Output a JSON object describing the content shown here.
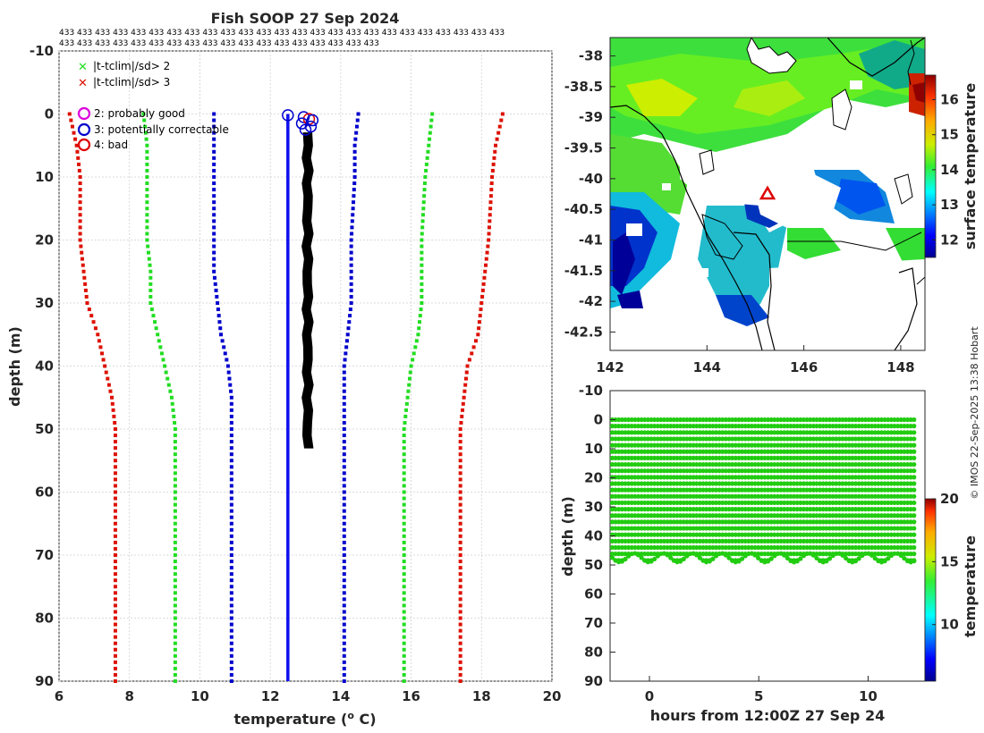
{
  "title": "Fish SOOP 27 Sep 2024",
  "station_counts": {
    "row1": "433 433 433 433 433 433 433 433 433 433 433 433 433 433 433 433 433 433 433 433 433 433 433 433 433",
    "row2": "433 433 433 433 433 433 433 433 433 433 433 433 433 433 433 433 433 433"
  },
  "legend": {
    "flag2": "|t-tclim|/sd> 2",
    "flag3": "|t-tclim|/sd> 3",
    "qc2": "2: probably good",
    "qc3": "3: potentially correctable",
    "qc4": "4: bad"
  },
  "copyright": "© IMOS 22-Sep-2025 13:38 Hobart",
  "colors": {
    "sd3": "#dd1100",
    "sd2": "#22dd22",
    "sd1": "#0000cc",
    "mean": "#1010ee",
    "profile": "#000000",
    "qc2": "#dd00dd",
    "qc3": "#0000cc",
    "qc4": "#dd0000",
    "points": "#22cc11"
  },
  "chart_data": [
    {
      "type": "line",
      "name": "profile",
      "xlabel": "temperature (o C)",
      "ylabel": "depth (m)",
      "xlim": [
        6,
        20
      ],
      "ylim": [
        -10,
        90
      ],
      "xticks": [
        "6",
        "8",
        "10",
        "12",
        "14",
        "16",
        "18",
        "20"
      ],
      "yticks": [
        "-10",
        "0",
        "10",
        "20",
        "30",
        "40",
        "50",
        "60",
        "70",
        "80",
        "90"
      ],
      "depth": [
        0,
        5,
        10,
        20,
        25,
        30,
        35,
        40,
        45,
        50,
        60,
        70,
        80,
        90
      ],
      "series": [
        {
          "name": "clim-3sd",
          "color": "#dd1100",
          "values": [
            6.3,
            6.5,
            6.6,
            6.6,
            6.7,
            6.8,
            7.1,
            7.3,
            7.5,
            7.6,
            7.6,
            7.6,
            7.6,
            7.6
          ]
        },
        {
          "name": "clim-2sd",
          "color": "#22dd22",
          "values": [
            8.4,
            8.5,
            8.5,
            8.5,
            8.6,
            8.6,
            8.8,
            9.0,
            9.2,
            9.3,
            9.3,
            9.3,
            9.3,
            9.3
          ]
        },
        {
          "name": "clim-1sd",
          "color": "#0000cc",
          "values": [
            10.4,
            10.4,
            10.4,
            10.4,
            10.4,
            10.5,
            10.6,
            10.8,
            10.9,
            10.9,
            10.9,
            10.9,
            10.9,
            10.9
          ]
        },
        {
          "name": "clim-mean",
          "color": "#1010ee",
          "values": [
            12.5,
            12.5,
            12.5,
            12.5,
            12.5,
            12.5,
            12.5,
            12.5,
            12.5,
            12.5,
            12.5,
            12.5,
            12.5,
            12.5
          ]
        },
        {
          "name": "clim+1sd",
          "color": "#0000cc",
          "values": [
            14.5,
            14.4,
            14.4,
            14.3,
            14.3,
            14.3,
            14.2,
            14.1,
            14.1,
            14.1,
            14.1,
            14.1,
            14.1,
            14.1
          ]
        },
        {
          "name": "clim+2sd",
          "color": "#22dd22",
          "values": [
            16.6,
            16.5,
            16.4,
            16.3,
            16.3,
            16.3,
            16.2,
            16.0,
            15.9,
            15.8,
            15.8,
            15.8,
            15.8,
            15.8
          ]
        },
        {
          "name": "clim+3sd",
          "color": "#dd1100",
          "values": [
            18.6,
            18.4,
            18.3,
            18.2,
            18.1,
            18.0,
            17.9,
            17.6,
            17.5,
            17.4,
            17.4,
            17.4,
            17.4,
            17.4
          ]
        }
      ],
      "observed": {
        "depth_min": 0,
        "depth_max": 50,
        "temp_min": 12.9,
        "temp_max": 13.2
      },
      "qc_markers": [
        {
          "temp": 12.5,
          "depth": 0.2,
          "flag": 3
        },
        {
          "temp": 12.95,
          "depth": 0.5,
          "flag": 3
        },
        {
          "temp": 13.1,
          "depth": 0.8,
          "flag": 4
        },
        {
          "temp": 12.9,
          "depth": 1.5,
          "flag": 3
        },
        {
          "temp": 13.2,
          "depth": 1.0,
          "flag": 3
        },
        {
          "temp": 13.0,
          "depth": 2.5,
          "flag": 3
        },
        {
          "temp": 13.15,
          "depth": 2.0,
          "flag": 3
        }
      ]
    },
    {
      "type": "heatmap",
      "name": "map",
      "xlim": [
        142,
        148.5
      ],
      "ylim": [
        -42.8,
        -37.7
      ],
      "xticks": [
        "142",
        "144",
        "146",
        "148"
      ],
      "yticks": [
        "-38",
        "-38.5",
        "-39",
        "-39.5",
        "-40",
        "-40.5",
        "-41",
        "-41.5",
        "-42",
        "-42.5"
      ],
      "colorbar": {
        "label": "surface temperature",
        "range": [
          11.5,
          16.7
        ],
        "ticks": [
          "12",
          "13",
          "14",
          "15",
          "16"
        ]
      },
      "marker": {
        "lon": 145.25,
        "lat": -40.25
      }
    },
    {
      "type": "scatter",
      "name": "depth-time",
      "xlabel": "hours from 12:00Z 27 Sep 24",
      "ylabel": "depth (m)",
      "xlim": [
        -1.8,
        12.6
      ],
      "ylim": [
        -10,
        90
      ],
      "xticks": [
        "0",
        "5",
        "10"
      ],
      "yticks": [
        "-10",
        "0",
        "10",
        "20",
        "30",
        "40",
        "50",
        "60",
        "70",
        "80",
        "90"
      ],
      "profile_hours_start": -1.7,
      "profile_hours_end": 12.1,
      "profile_count": 94,
      "bottom_depth": 49,
      "colorbar": {
        "label": "temperature",
        "range": [
          5.5,
          20
        ],
        "ticks": [
          "10",
          "15",
          "20"
        ]
      }
    }
  ]
}
